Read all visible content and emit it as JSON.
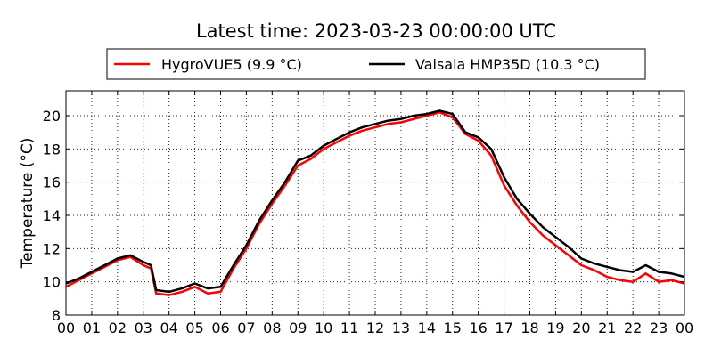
{
  "chart_data": {
    "type": "line",
    "title": "Latest time: 2023-03-23 00:00:00 UTC",
    "xlabel": "",
    "ylabel": "Temperature (°C)",
    "xlim": [
      0,
      24
    ],
    "ylim": [
      8,
      21.5
    ],
    "xticks": [
      "00",
      "01",
      "02",
      "03",
      "04",
      "05",
      "06",
      "07",
      "08",
      "09",
      "10",
      "11",
      "12",
      "13",
      "14",
      "15",
      "16",
      "17",
      "18",
      "19",
      "20",
      "21",
      "22",
      "23",
      "00"
    ],
    "yticks": [
      8,
      10,
      12,
      14,
      16,
      18,
      20
    ],
    "grid": true,
    "legend_placement": "top-center",
    "x": [
      0,
      0.5,
      1,
      1.5,
      2,
      2.5,
      3,
      3.3,
      3.5,
      4,
      4.5,
      5,
      5.5,
      6,
      6.5,
      7,
      7.5,
      8,
      8.5,
      9,
      9.5,
      10,
      10.5,
      11,
      11.5,
      12,
      12.5,
      13,
      13.5,
      14,
      14.5,
      15,
      15.5,
      16,
      16.5,
      17,
      17.5,
      18,
      18.5,
      19,
      19.5,
      20,
      20.5,
      21,
      21.5,
      22,
      22.5,
      23,
      23.5,
      24
    ],
    "series": [
      {
        "name": "HygroVUE5 (9.9 °C)",
        "color": "#ff0000",
        "values": [
          9.7,
          10.1,
          10.5,
          10.9,
          11.3,
          11.5,
          11.0,
          10.8,
          9.3,
          9.2,
          9.4,
          9.7,
          9.3,
          9.4,
          10.8,
          12.0,
          13.5,
          14.7,
          15.8,
          17.0,
          17.4,
          18.0,
          18.4,
          18.8,
          19.1,
          19.3,
          19.5,
          19.6,
          19.8,
          20.0,
          20.2,
          19.9,
          18.9,
          18.5,
          17.6,
          15.8,
          14.6,
          13.6,
          12.8,
          12.2,
          11.6,
          11.0,
          10.7,
          10.3,
          10.1,
          10.0,
          10.5,
          10.0,
          10.1,
          9.9
        ]
      },
      {
        "name": "Vaisala HMP35D (10.3 °C)",
        "color": "#000000",
        "values": [
          9.9,
          10.2,
          10.6,
          11.0,
          11.4,
          11.6,
          11.2,
          11.0,
          9.5,
          9.4,
          9.6,
          9.9,
          9.6,
          9.7,
          11.0,
          12.2,
          13.7,
          14.9,
          16.0,
          17.3,
          17.6,
          18.2,
          18.6,
          19.0,
          19.3,
          19.5,
          19.7,
          19.8,
          20.0,
          20.1,
          20.3,
          20.1,
          19.0,
          18.7,
          18.0,
          16.3,
          15.0,
          14.1,
          13.3,
          12.7,
          12.1,
          11.4,
          11.1,
          10.9,
          10.7,
          10.6,
          11.0,
          10.6,
          10.5,
          10.3
        ]
      }
    ]
  }
}
